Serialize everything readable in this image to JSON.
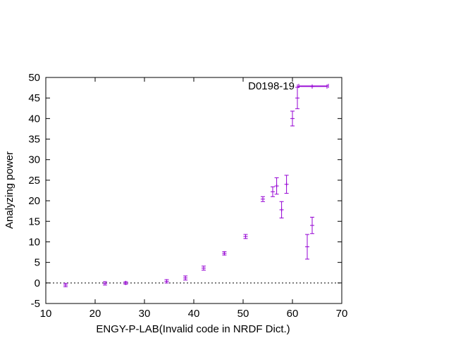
{
  "chart_data": {
    "type": "scatter",
    "title": "",
    "xlabel": "ENGY-P-LAB(Invalid code in NRDF Dict.)",
    "ylabel": "Analyzing power",
    "xlim": [
      10,
      70
    ],
    "ylim": [
      -5,
      50
    ],
    "xticks": [
      10,
      20,
      30,
      40,
      50,
      60,
      70
    ],
    "yticks": [
      -5,
      0,
      5,
      10,
      15,
      20,
      25,
      30,
      35,
      40,
      45,
      50
    ],
    "grid": false,
    "zero_line": true,
    "legend_position": "top-right",
    "series": [
      {
        "name": "D0198-19",
        "color": "#9400d3",
        "points": [
          {
            "x": 14.0,
            "y": -0.5,
            "yerr": 0.4,
            "xerr": 0
          },
          {
            "x": 22.0,
            "y": -0.1,
            "yerr": 0.4,
            "xerr": 0
          },
          {
            "x": 26.2,
            "y": 0.0,
            "yerr": 0.3,
            "xerr": 0
          },
          {
            "x": 34.5,
            "y": 0.4,
            "yerr": 0.4,
            "xerr": 0
          },
          {
            "x": 38.3,
            "y": 1.2,
            "yerr": 0.5,
            "xerr": 0
          },
          {
            "x": 42.0,
            "y": 3.6,
            "yerr": 0.5,
            "xerr": 0
          },
          {
            "x": 46.2,
            "y": 7.2,
            "yerr": 0.4,
            "xerr": 0
          },
          {
            "x": 50.5,
            "y": 11.3,
            "yerr": 0.5,
            "xerr": 0
          },
          {
            "x": 54.0,
            "y": 20.4,
            "yerr": 0.6,
            "xerr": 0
          },
          {
            "x": 56.0,
            "y": 22.2,
            "yerr": 1.2,
            "xerr": 0
          },
          {
            "x": 56.8,
            "y": 23.6,
            "yerr": 2.0,
            "xerr": 0
          },
          {
            "x": 57.8,
            "y": 17.8,
            "yerr": 2.0,
            "xerr": 0
          },
          {
            "x": 58.8,
            "y": 24.0,
            "yerr": 2.2,
            "xerr": 0
          },
          {
            "x": 60.0,
            "y": 40.0,
            "yerr": 1.8,
            "xerr": 0
          },
          {
            "x": 61.0,
            "y": 45.0,
            "yerr": 2.6,
            "xerr": 0
          },
          {
            "x": 63.0,
            "y": 8.8,
            "yerr": 3.0,
            "xerr": 0
          },
          {
            "x": 64.0,
            "y": 14.0,
            "yerr": 2.0,
            "xerr": 0
          },
          {
            "x": 64.0,
            "y": 47.8,
            "yerr": 0,
            "xerr": 3.0
          }
        ]
      }
    ]
  }
}
